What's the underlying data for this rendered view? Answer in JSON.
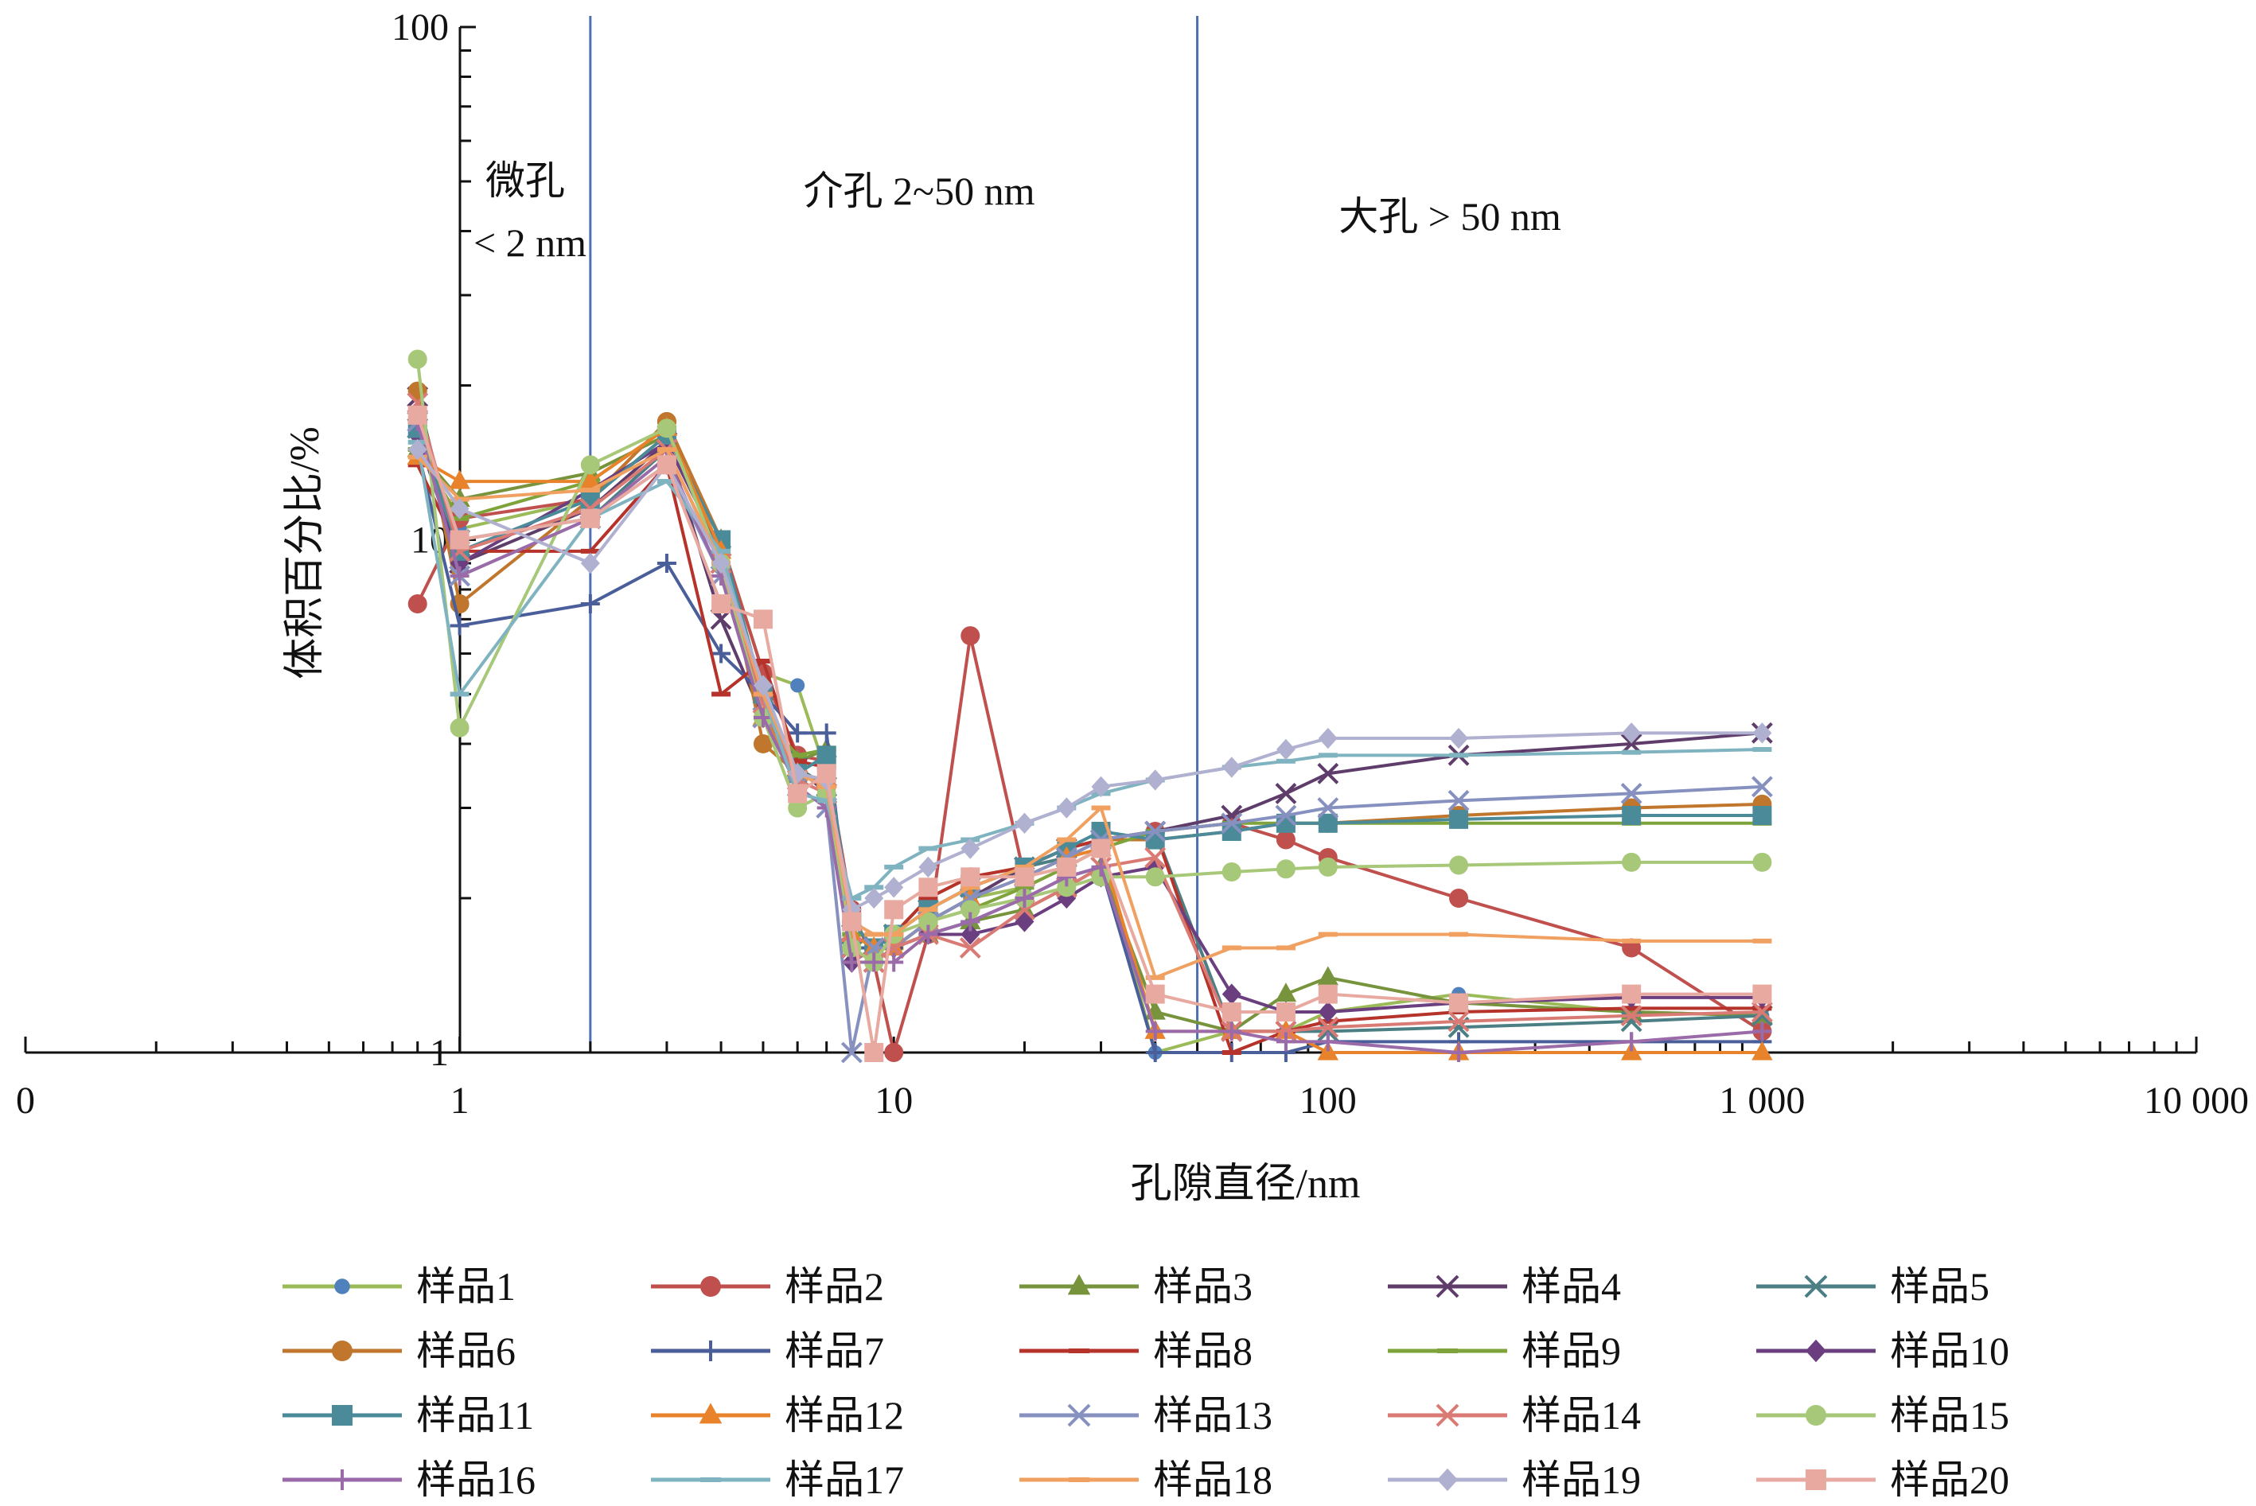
{
  "chart_data": {
    "type": "line",
    "title": "",
    "xlabel": "孔隙直径/nm",
    "ylabel": "体积百分比/%",
    "x_scale": "log",
    "y_scale": "log",
    "xlim": [
      0.1,
      10000
    ],
    "ylim": [
      1,
      100
    ],
    "x_tick_labels": [
      "0",
      "1",
      "10",
      "100",
      "1 000",
      "10 000"
    ],
    "y_tick_labels": [
      "1",
      "10",
      "100"
    ],
    "grid": false,
    "legend_position": "bottom",
    "region_boundaries": [
      2,
      50
    ],
    "region_labels": [
      {
        "lines": [
          "微孔",
          "< 2 nm"
        ]
      },
      {
        "lines": [
          "介孔 2~50 nm"
        ]
      },
      {
        "lines": [
          "大孔 > 50 nm"
        ]
      }
    ],
    "x": [
      0.8,
      1,
      2,
      3,
      4,
      5,
      6,
      7,
      8,
      9,
      10,
      12,
      15,
      20,
      25,
      30,
      40,
      60,
      80,
      100,
      200,
      500,
      1000
    ],
    "series": [
      {
        "name": "样品1",
        "color": "#9bbb59",
        "marker_color": "#4f81bd",
        "marker": "circle-small",
        "values": [
          16,
          10.5,
          12,
          16,
          10,
          5.5,
          5.2,
          3.5,
          1.6,
          1.5,
          1.6,
          1.8,
          2.0,
          2.1,
          2.3,
          2.5,
          1.0,
          1.1,
          1.1,
          1.2,
          1.3,
          1.2,
          1.18
        ]
      },
      {
        "name": "样品2",
        "color": "#c0504d",
        "marker_color": "#c0504d",
        "marker": "circle",
        "values": [
          7.5,
          11,
          12,
          17,
          10,
          5.5,
          3.8,
          3.7,
          1.9,
          1.5,
          1.0,
          1.7,
          6.5,
          2.2,
          2.4,
          2.6,
          2.7,
          2.8,
          2.6,
          2.4,
          2.0,
          1.6,
          1.1
        ]
      },
      {
        "name": "样品3",
        "color": "#77933c",
        "marker_color": "#77933c",
        "marker": "triangle",
        "values": [
          15,
          12,
          13.5,
          16,
          10,
          4.5,
          3.7,
          3.9,
          1.7,
          1.6,
          1.6,
          1.7,
          1.8,
          1.9,
          2.1,
          2.3,
          1.2,
          1.1,
          1.3,
          1.4,
          1.25,
          1.2,
          1.18
        ]
      },
      {
        "name": "样品4",
        "color": "#5f3d6b",
        "marker_color": "#5f3d6b",
        "marker": "x",
        "values": [
          19,
          9,
          11.5,
          15.5,
          7,
          4.5,
          3.6,
          3.2,
          1.6,
          1.5,
          1.6,
          1.8,
          2.0,
          2.3,
          2.5,
          2.6,
          2.7,
          2.9,
          3.2,
          3.5,
          3.8,
          4.0,
          4.2
        ]
      },
      {
        "name": "样品5",
        "color": "#4b7f84",
        "marker_color": "#4b7f84",
        "marker": "x",
        "values": [
          16.5,
          10,
          11,
          15,
          9,
          5,
          3.6,
          3.3,
          1.7,
          1.6,
          1.7,
          1.9,
          2.1,
          2.3,
          2.4,
          2.6,
          2.7,
          1.1,
          1.1,
          1.1,
          1.12,
          1.15,
          1.18
        ]
      },
      {
        "name": "样品6",
        "color": "#c0762c",
        "marker_color": "#c0762c",
        "marker": "circle",
        "values": [
          19.5,
          7.5,
          12,
          17,
          10,
          4,
          3.5,
          3.3,
          1.8,
          1.6,
          1.7,
          2.0,
          2.2,
          2.3,
          2.5,
          2.6,
          2.6,
          2.7,
          2.8,
          2.8,
          2.9,
          3.0,
          3.05
        ]
      },
      {
        "name": "样品7",
        "color": "#4a5e9a",
        "marker_color": "#4a5e9a",
        "marker": "plus",
        "values": [
          15,
          6.8,
          7.5,
          9,
          6,
          5,
          4.2,
          4.2,
          1.6,
          1.6,
          1.6,
          1.7,
          1.8,
          2.0,
          2.2,
          2.3,
          1.0,
          1.0,
          1.0,
          1.05,
          1.05,
          1.05,
          1.05
        ]
      },
      {
        "name": "样品8",
        "color": "#b5332b",
        "marker_color": "#b5332b",
        "marker": "dash",
        "values": [
          14,
          9.5,
          9.5,
          14,
          5,
          5.8,
          3.7,
          3.6,
          1.8,
          1.6,
          1.7,
          2.0,
          2.2,
          2.3,
          2.5,
          2.6,
          2.7,
          1.0,
          1.1,
          1.15,
          1.2,
          1.22,
          1.22
        ]
      },
      {
        "name": "样品9",
        "color": "#7ea33a",
        "marker_color": "#7ea33a",
        "marker": "dash",
        "values": [
          15,
          11,
          13,
          16.5,
          9.5,
          4.5,
          3.8,
          3.9,
          1.7,
          1.6,
          1.6,
          1.8,
          1.9,
          2.1,
          2.3,
          2.5,
          2.7,
          2.8,
          2.8,
          2.8,
          2.8,
          2.8,
          2.8
        ]
      },
      {
        "name": "样品10",
        "color": "#6b3f7f",
        "marker_color": "#6b3f7f",
        "marker": "diamond",
        "values": [
          16,
          9,
          12.5,
          15.5,
          9.5,
          4.5,
          3.5,
          3.3,
          1.5,
          1.6,
          1.6,
          1.7,
          1.7,
          1.8,
          2.0,
          2.2,
          2.3,
          1.3,
          1.2,
          1.2,
          1.25,
          1.28,
          1.28
        ]
      },
      {
        "name": "样品11",
        "color": "#4b8a99",
        "marker_color": "#4b8a99",
        "marker": "square",
        "values": [
          16.5,
          9.5,
          12,
          16,
          10,
          5,
          3.5,
          3.8,
          1.8,
          1.6,
          1.7,
          1.9,
          2.1,
          2.3,
          2.5,
          2.7,
          2.6,
          2.7,
          2.8,
          2.8,
          2.85,
          2.9,
          2.9
        ]
      },
      {
        "name": "样品12",
        "color": "#e8832c",
        "marker_color": "#e8832c",
        "marker": "triangle",
        "values": [
          14.5,
          13,
          13,
          16.5,
          9.5,
          4.5,
          3.5,
          3.4,
          1.7,
          1.6,
          1.6,
          1.8,
          2.0,
          2.2,
          2.4,
          2.5,
          1.1,
          1.1,
          1.1,
          1.0,
          1.0,
          1.0,
          1.0
        ]
      },
      {
        "name": "样品13",
        "color": "#8691bf",
        "marker_color": "#8691bf",
        "marker": "x",
        "values": [
          17,
          8.5,
          11,
          14,
          8.5,
          4.5,
          3.3,
          3.0,
          1.0,
          1.6,
          1.6,
          1.8,
          2.0,
          2.2,
          2.4,
          2.6,
          2.7,
          2.8,
          2.9,
          3.0,
          3.1,
          3.2,
          3.3
        ]
      },
      {
        "name": "样品14",
        "color": "#d97a74",
        "marker_color": "#d97a74",
        "marker": "x",
        "values": [
          18.5,
          9.5,
          11.5,
          15,
          9,
          4.8,
          3.4,
          3.2,
          1.6,
          1.5,
          1.6,
          1.7,
          1.6,
          1.9,
          2.1,
          2.3,
          2.4,
          1.1,
          1.1,
          1.12,
          1.15,
          1.18,
          1.2
        ]
      },
      {
        "name": "样品15",
        "color": "#a7c878",
        "marker_color": "#a7c878",
        "marker": "circle",
        "values": [
          22.5,
          4.3,
          14,
          16.5,
          9,
          4.5,
          3,
          3.2,
          1.6,
          1.5,
          1.7,
          1.8,
          1.9,
          2.0,
          2.1,
          2.2,
          2.2,
          2.25,
          2.28,
          2.3,
          2.32,
          2.35,
          2.35
        ]
      },
      {
        "name": "样品16",
        "color": "#9a6ba8",
        "marker_color": "#9a6ba8",
        "marker": "plus",
        "values": [
          17,
          8.5,
          11,
          14.5,
          8.5,
          4.5,
          3.3,
          3.0,
          1.5,
          1.5,
          1.5,
          1.7,
          1.8,
          2.0,
          2.2,
          2.3,
          1.1,
          1.1,
          1.05,
          1.05,
          1.0,
          1.05,
          1.1
        ]
      },
      {
        "name": "样品17",
        "color": "#7fb3c0",
        "marker_color": "#7fb3c0",
        "marker": "dash",
        "values": [
          15.5,
          5,
          11,
          13,
          9.5,
          5,
          3.2,
          3.1,
          2.0,
          2.1,
          2.3,
          2.5,
          2.6,
          2.8,
          3.0,
          3.2,
          3.4,
          3.6,
          3.7,
          3.8,
          3.8,
          3.85,
          3.9
        ]
      },
      {
        "name": "样品18",
        "color": "#f0a060",
        "marker_color": "#f0a060",
        "marker": "dash",
        "values": [
          14.5,
          12,
          12.5,
          15,
          9,
          5,
          3.5,
          3.3,
          1.8,
          1.7,
          1.7,
          1.9,
          2.1,
          2.3,
          2.6,
          3.0,
          1.4,
          1.6,
          1.6,
          1.7,
          1.7,
          1.65,
          1.65
        ]
      },
      {
        "name": "样品19",
        "color": "#b0b0d0",
        "marker_color": "#b0b0d0",
        "marker": "diamond",
        "values": [
          15,
          11.5,
          9,
          14,
          9,
          5.2,
          3.5,
          3.4,
          1.9,
          2.0,
          2.1,
          2.3,
          2.5,
          2.8,
          3.0,
          3.3,
          3.4,
          3.6,
          3.9,
          4.1,
          4.1,
          4.2,
          4.2
        ]
      },
      {
        "name": "样品20",
        "color": "#e8aaa0",
        "marker_color": "#e8aaa0",
        "marker": "square",
        "values": [
          17.5,
          10,
          11,
          14,
          7.5,
          7,
          3.2,
          3.5,
          1.8,
          1.0,
          1.9,
          2.1,
          2.2,
          2.2,
          2.3,
          2.5,
          1.3,
          1.2,
          1.2,
          1.3,
          1.25,
          1.3,
          1.3
        ]
      }
    ]
  }
}
